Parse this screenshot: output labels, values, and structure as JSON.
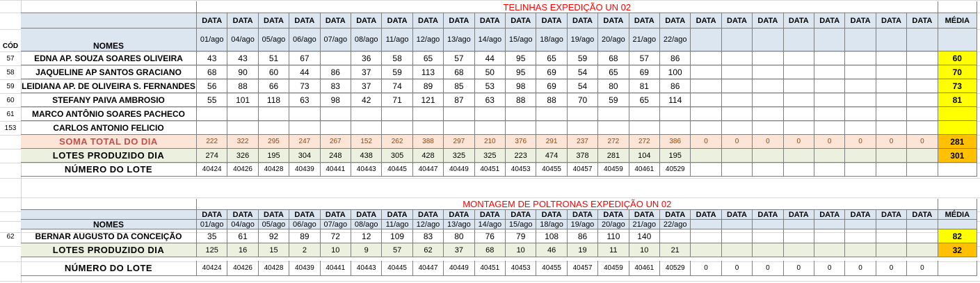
{
  "colors": {
    "header_bg": "#dce6f1",
    "title_red": "#ff0000",
    "soma_bg": "#fce4d6",
    "lotes_bg": "#ebf1de",
    "media_yellow": "#ffff00",
    "media_orange": "#ffc000"
  },
  "header_word": "DATA",
  "media_label": "MÉDIA",
  "nomes_label": "NOMES",
  "cod_label": "CÓD",
  "dates": [
    "01/ago",
    "04/ago",
    "05/ago",
    "06/ago",
    "07/ago",
    "08/ago",
    "11/ago",
    "12/ago",
    "13/ago",
    "14/ago",
    "15/ago",
    "18/ago",
    "19/ago",
    "20/ago",
    "21/ago",
    "22/ago"
  ],
  "table1": {
    "title": "TELINHAS EXPEDIÇÃO UN 02",
    "rows": [
      {
        "cod": "57",
        "name": "EDNA AP. SOUZA SOARES OLIVEIRA",
        "values": [
          "43",
          "43",
          "51",
          "67",
          "",
          "36",
          "58",
          "65",
          "57",
          "44",
          "95",
          "65",
          "59",
          "68",
          "57",
          "86"
        ],
        "media": "60"
      },
      {
        "cod": "58",
        "name": "JAQUELINE AP SANTOS GRACIANO",
        "values": [
          "68",
          "90",
          "60",
          "44",
          "86",
          "37",
          "59",
          "113",
          "68",
          "50",
          "95",
          "69",
          "54",
          "65",
          "69",
          "100"
        ],
        "media": "70"
      },
      {
        "cod": "59",
        "name": "LEIDIANA AP. DE OLIVEIRA S. FERNANDES",
        "values": [
          "56",
          "88",
          "66",
          "73",
          "83",
          "37",
          "74",
          "89",
          "85",
          "53",
          "98",
          "69",
          "54",
          "80",
          "81",
          "86"
        ],
        "media": "73"
      },
      {
        "cod": "60",
        "name": "STEFANY PAIVA AMBROSIO",
        "values": [
          "55",
          "101",
          "118",
          "63",
          "98",
          "42",
          "71",
          "121",
          "87",
          "63",
          "88",
          "88",
          "70",
          "59",
          "65",
          "114"
        ],
        "media": "81"
      },
      {
        "cod": "61",
        "name": "MARCO ANTÔNIO SOARES PACHECO",
        "values": [],
        "media": ""
      },
      {
        "cod": "153",
        "name": "CARLOS ANTONIO FELICIO",
        "values": [],
        "media": ""
      }
    ],
    "soma": {
      "label": "SOMA TOTAL DO DIA",
      "values": [
        "222",
        "322",
        "295",
        "247",
        "267",
        "152",
        "262",
        "388",
        "297",
        "210",
        "376",
        "291",
        "237",
        "272",
        "272",
        "386",
        "0",
        "0",
        "0",
        "0",
        "0",
        "0",
        "0",
        "0"
      ],
      "media": "281"
    },
    "lotes": {
      "label": "LOTES PRODUZIDO DIA",
      "values": [
        "274",
        "326",
        "195",
        "304",
        "248",
        "438",
        "305",
        "428",
        "325",
        "325",
        "223",
        "474",
        "378",
        "281",
        "104",
        "195"
      ],
      "media": "301"
    },
    "numero": {
      "label": "NÚMERO DO LOTE",
      "values": [
        "40424",
        "40426",
        "40428",
        "40439",
        "40441",
        "40443",
        "40445",
        "40447",
        "40449",
        "40451",
        "40453",
        "40455",
        "40457",
        "40459",
        "40461",
        "40529"
      ]
    }
  },
  "table2": {
    "title": "MONTAGEM DE POLTRONAS EXPEDIÇÃO UN 02",
    "rows": [
      {
        "cod": "62",
        "name": "BERNAR AUGUSTO DA CONCEIÇÃO",
        "values": [
          "35",
          "61",
          "92",
          "89",
          "72",
          "12",
          "109",
          "83",
          "80",
          "76",
          "79",
          "108",
          "86",
          "110",
          "140"
        ],
        "media": "82"
      }
    ],
    "lotes": {
      "label": "LOTES PRODUZIDO DIA",
      "values": [
        "125",
        "16",
        "15",
        "2",
        "10",
        "9",
        "57",
        "62",
        "37",
        "68",
        "10",
        "46",
        "19",
        "11",
        "10",
        "21"
      ],
      "media": "32"
    },
    "numero": {
      "label": "NÚMERO DO LOTE",
      "values": [
        "40424",
        "40426",
        "40428",
        "40439",
        "40441",
        "40443",
        "40445",
        "40447",
        "40449",
        "40451",
        "40453",
        "40455",
        "40457",
        "40459",
        "40461",
        "40529",
        "0",
        "0",
        "0",
        "0",
        "0",
        "0",
        "0",
        "0"
      ]
    }
  }
}
